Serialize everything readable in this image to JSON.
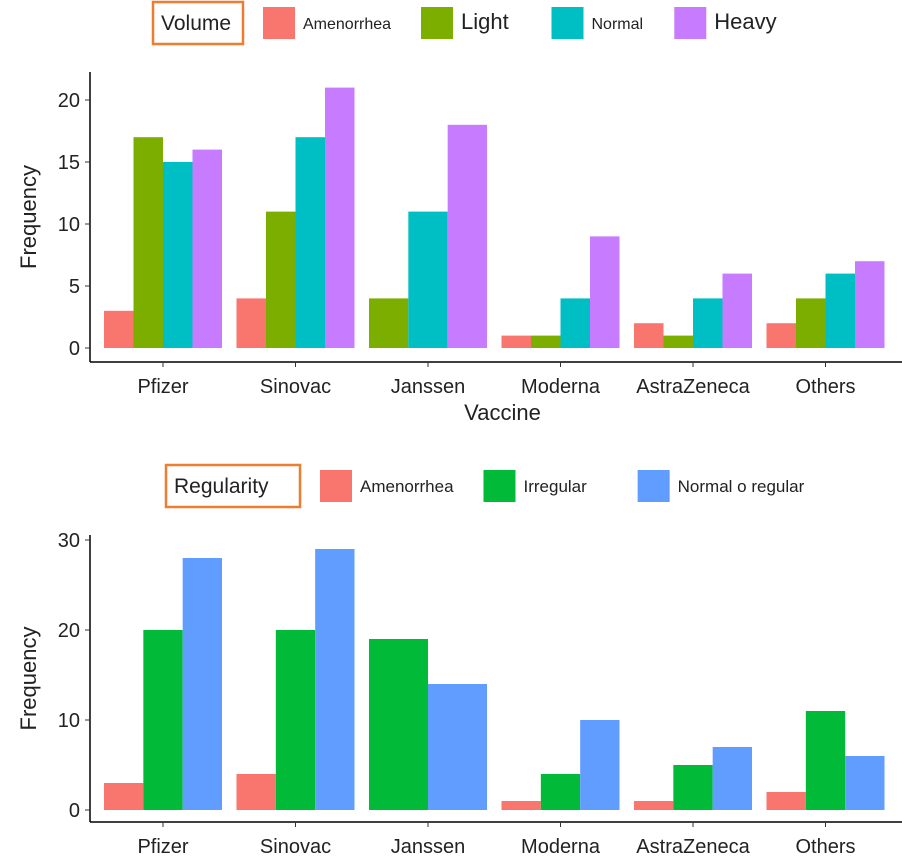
{
  "chart_data": [
    {
      "type": "bar",
      "legend_title": "Volume",
      "legend_placement": "top",
      "xlabel": "Vaccine",
      "ylabel": "Frequency",
      "ylim": [
        0,
        22
      ],
      "yticks": [
        0,
        5,
        10,
        15,
        20
      ],
      "categories": [
        "Pfizer",
        "Sinovac",
        "Janssen",
        "Moderna",
        "AstraZeneca",
        "Others"
      ],
      "series": [
        {
          "name": "Amenorrhea",
          "color": "#F8766D",
          "values": [
            3,
            4,
            null,
            1,
            2,
            2
          ]
        },
        {
          "name": "Light",
          "color": "#7CAE00",
          "values": [
            17,
            11,
            4,
            1,
            1,
            4
          ]
        },
        {
          "name": "Normal",
          "color": "#00BFC4",
          "values": [
            15,
            17,
            11,
            4,
            4,
            6
          ]
        },
        {
          "name": "Heavy",
          "color": "#C77CFF",
          "values": [
            16,
            21,
            18,
            9,
            6,
            7
          ]
        }
      ]
    },
    {
      "type": "bar",
      "legend_title": "Regularity",
      "legend_placement": "top",
      "xlabel": "",
      "ylabel": "Frequency",
      "ylim": [
        0,
        31
      ],
      "yticks": [
        0,
        10,
        20,
        30
      ],
      "categories": [
        "Pfizer",
        "Sinovac",
        "Janssen",
        "Moderna",
        "AstraZeneca",
        "Others"
      ],
      "series": [
        {
          "name": "Amenorrhea",
          "color": "#F8766D",
          "values": [
            3,
            4,
            null,
            1,
            1,
            2
          ]
        },
        {
          "name": "Irregular",
          "color": "#00BA38",
          "values": [
            20,
            20,
            19,
            4,
            5,
            11
          ]
        },
        {
          "name": "Normal o regular",
          "color": "#619CFF",
          "values": [
            28,
            29,
            14,
            10,
            7,
            6
          ]
        }
      ]
    }
  ]
}
